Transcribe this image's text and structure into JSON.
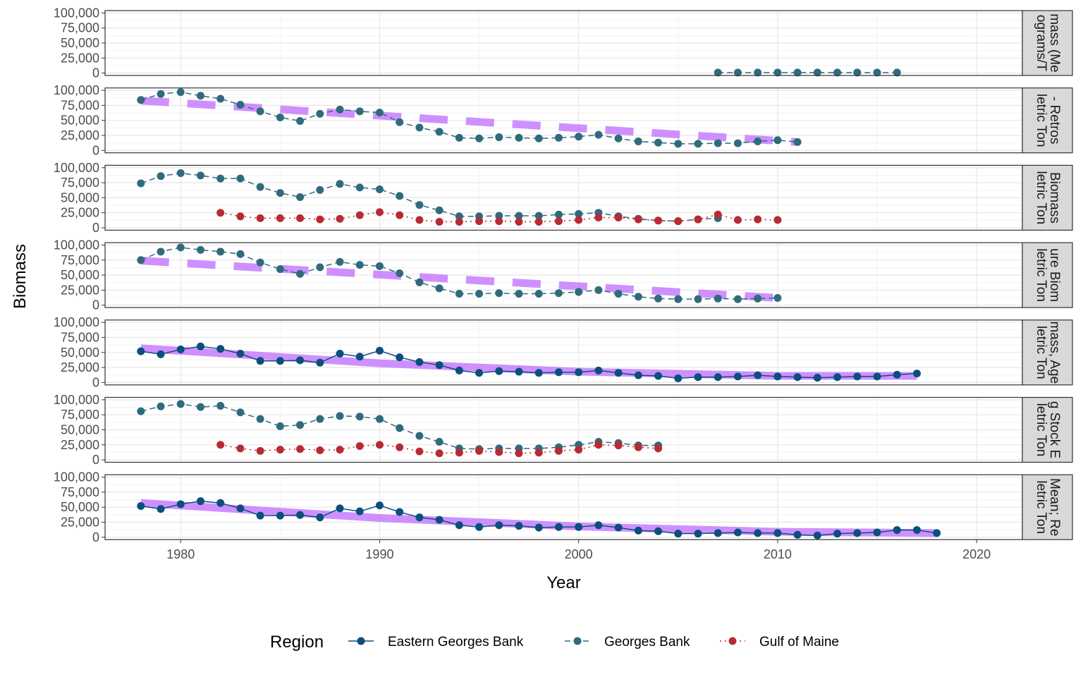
{
  "chart_data": {
    "type": "line",
    "facet_layout": "vertical",
    "shared_x_axis": true,
    "ylabel": "Biomass",
    "xlabel": "Year",
    "xlim": [
      1976.2,
      2022.3
    ],
    "ylim": [
      -4000,
      104000
    ],
    "x_ticks": [
      1980,
      1990,
      2000,
      2010,
      2020
    ],
    "x_tick_labels": [
      "1980",
      "1990",
      "2000",
      "2010",
      "2020"
    ],
    "y_ticks": [
      0,
      25000,
      50000,
      75000,
      100000
    ],
    "y_tick_labels": [
      "0",
      "25,000",
      "50,000",
      "75,000",
      "100,000"
    ],
    "grid": true,
    "legend": {
      "title": "Region",
      "position": "bottom",
      "entries": [
        {
          "label": "Eastern Georges Bank",
          "color": "#0b4f7c",
          "linetype": "solid"
        },
        {
          "label": "Georges Bank",
          "color": "#2f6b7c",
          "linetype": "dashed"
        },
        {
          "label": "Gulf of Maine",
          "color": "#b82a34",
          "linetype": "dotted"
        }
      ]
    },
    "trend_color": "#c77cff",
    "facets": [
      {
        "strip_lines": [
          "mass (Me",
          "ograms/T"
        ],
        "series": [
          {
            "region": "Georges Bank",
            "x": [
              2007,
              2008,
              2009,
              2010,
              2011,
              2012,
              2013,
              2014,
              2015,
              2016
            ],
            "values": [
              800,
              800,
              800,
              800,
              800,
              800,
              800,
              800,
              800,
              800
            ]
          }
        ],
        "trend": null
      },
      {
        "strip_lines": [
          "- Retros",
          "letric Ton"
        ],
        "series": [
          {
            "region": "Georges Bank",
            "x": [
              1978,
              1979,
              1980,
              1981,
              1982,
              1983,
              1984,
              1985,
              1986,
              1987,
              1988,
              1989,
              1990,
              1991,
              1992,
              1993,
              1994,
              1995,
              1996,
              1997,
              1998,
              1999,
              2000,
              2001,
              2002,
              2003,
              2004,
              2005,
              2006,
              2007,
              2008,
              2009,
              2010,
              2011
            ],
            "values": [
              84000,
              94000,
              97000,
              91000,
              86000,
              76000,
              65000,
              55000,
              49000,
              61000,
              68000,
              65000,
              63000,
              47000,
              38000,
              31000,
              21000,
              20000,
              22000,
              21000,
              20000,
              21000,
              23000,
              26000,
              20000,
              15000,
              13000,
              11000,
              11000,
              12000,
              12000,
              15000,
              17000,
              14000
            ]
          }
        ],
        "trend": {
          "style": "dashed",
          "x": [
            1978,
            2011
          ],
          "values": [
            83000,
            14000
          ]
        }
      },
      {
        "strip_lines": [
          "Biomass",
          "letric Ton"
        ],
        "series": [
          {
            "region": "Georges Bank",
            "x": [
              1978,
              1979,
              1980,
              1981,
              1982,
              1983,
              1984,
              1985,
              1986,
              1987,
              1988,
              1989,
              1990,
              1991,
              1992,
              1993,
              1994,
              1995,
              1996,
              1997,
              1998,
              1999,
              2000,
              2001,
              2002,
              2003,
              2004,
              2005,
              2006,
              2007
            ],
            "values": [
              74000,
              86000,
              91000,
              87000,
              82000,
              82000,
              68000,
              58000,
              51000,
              63000,
              73000,
              67000,
              64000,
              53000,
              38000,
              29000,
              19000,
              19000,
              20000,
              20000,
              20000,
              22000,
              23000,
              25000,
              19000,
              15000,
              12000,
              11000,
              14000,
              16000
            ]
          },
          {
            "region": "Gulf of Maine",
            "x": [
              1982,
              1983,
              1984,
              1985,
              1986,
              1987,
              1988,
              1989,
              1990,
              1991,
              1992,
              1993,
              1994,
              1995,
              1996,
              1997,
              1998,
              1999,
              2000,
              2001,
              2002,
              2003,
              2004,
              2005,
              2006,
              2007,
              2008,
              2009,
              2010
            ],
            "values": [
              25000,
              19000,
              16000,
              16000,
              16000,
              14000,
              15000,
              21000,
              26000,
              21000,
              13000,
              10000,
              10000,
              11000,
              11000,
              10000,
              10000,
              11000,
              13000,
              17000,
              17000,
              14000,
              12000,
              11000,
              14000,
              22000,
              13000,
              14000,
              13000
            ]
          }
        ],
        "trend": null
      },
      {
        "strip_lines": [
          "ure Biom",
          "letric Ton"
        ],
        "series": [
          {
            "region": "Georges Bank",
            "x": [
              1978,
              1979,
              1980,
              1981,
              1982,
              1983,
              1984,
              1985,
              1986,
              1987,
              1988,
              1989,
              1990,
              1991,
              1992,
              1993,
              1994,
              1995,
              1996,
              1997,
              1998,
              1999,
              2000,
              2001,
              2002,
              2003,
              2004,
              2005,
              2006,
              2007,
              2008,
              2009,
              2010
            ],
            "values": [
              75000,
              89000,
              96000,
              92000,
              89000,
              85000,
              71000,
              60000,
              52000,
              63000,
              72000,
              67000,
              65000,
              53000,
              38000,
              28000,
              19000,
              19000,
              20000,
              19000,
              19000,
              20000,
              22000,
              25000,
              19000,
              14000,
              11000,
              10000,
              10000,
              11000,
              10000,
              11000,
              12000
            ]
          }
        ],
        "trend": {
          "style": "dashed",
          "x": [
            1978,
            2010
          ],
          "values": [
            74000,
            12000
          ]
        }
      },
      {
        "strip_lines": [
          "mass, Age",
          "letric Ton"
        ],
        "series": [
          {
            "region": "Eastern Georges Bank",
            "x": [
              1978,
              1979,
              1980,
              1981,
              1982,
              1983,
              1984,
              1985,
              1986,
              1987,
              1988,
              1989,
              1990,
              1991,
              1992,
              1993,
              1994,
              1995,
              1996,
              1997,
              1998,
              1999,
              2000,
              2001,
              2002,
              2003,
              2004,
              2005,
              2006,
              2007,
              2008,
              2009,
              2010,
              2011,
              2012,
              2013,
              2014,
              2015,
              2016,
              2017
            ],
            "values": [
              52000,
              47000,
              55000,
              60000,
              56000,
              48000,
              36000,
              36000,
              37000,
              33000,
              48000,
              43000,
              53000,
              42000,
              34000,
              29000,
              20000,
              16000,
              19000,
              18000,
              16000,
              17000,
              17000,
              20000,
              16000,
              12000,
              11000,
              7000,
              9000,
              9000,
              10000,
              12000,
              10000,
              9000,
              8000,
              9000,
              10000,
              10000,
              13000,
              15000
            ]
          }
        ],
        "trend": {
          "style": "solid",
          "x": [
            1978,
            1990,
            2000,
            2010,
            2017
          ],
          "values": [
            57000,
            32000,
            18000,
            11000,
            11000
          ]
        }
      },
      {
        "strip_lines": [
          "g Stock E",
          "letric Ton"
        ],
        "series": [
          {
            "region": "Georges Bank",
            "x": [
              1978,
              1979,
              1980,
              1981,
              1982,
              1983,
              1984,
              1985,
              1986,
              1987,
              1988,
              1989,
              1990,
              1991,
              1992,
              1993,
              1994,
              1995,
              1996,
              1997,
              1998,
              1999,
              2000,
              2001,
              2002,
              2003,
              2004
            ],
            "values": [
              81000,
              89000,
              93000,
              88000,
              90000,
              79000,
              68000,
              56000,
              58000,
              68000,
              73000,
              72000,
              68000,
              53000,
              40000,
              30000,
              19000,
              18000,
              19000,
              19000,
              19000,
              21000,
              25000,
              30000,
              28000,
              24000,
              24000
            ]
          },
          {
            "region": "Gulf of Maine",
            "x": [
              1982,
              1983,
              1984,
              1985,
              1986,
              1987,
              1988,
              1989,
              1990,
              1991,
              1992,
              1993,
              1994,
              1995,
              1996,
              1997,
              1998,
              1999,
              2000,
              2001,
              2002,
              2003,
              2004
            ],
            "values": [
              25000,
              19000,
              15000,
              17000,
              18000,
              16000,
              17000,
              23000,
              25000,
              21000,
              14000,
              11000,
              12000,
              15000,
              13000,
              11000,
              12000,
              15000,
              17000,
              25000,
              24000,
              21000,
              19000
            ]
          }
        ],
        "trend": null
      },
      {
        "strip_lines": [
          "Mean; Re",
          "letric Ton"
        ],
        "series": [
          {
            "region": "Eastern Georges Bank",
            "x": [
              1978,
              1979,
              1980,
              1981,
              1982,
              1983,
              1984,
              1985,
              1986,
              1987,
              1988,
              1989,
              1990,
              1991,
              1992,
              1993,
              1994,
              1995,
              1996,
              1997,
              1998,
              1999,
              2000,
              2001,
              2002,
              2003,
              2004,
              2005,
              2006,
              2007,
              2008,
              2009,
              2010,
              2011,
              2012,
              2013,
              2014,
              2015,
              2016,
              2017,
              2018
            ],
            "values": [
              52000,
              47000,
              55000,
              60000,
              57000,
              48000,
              36000,
              36000,
              37000,
              33000,
              48000,
              43000,
              53000,
              42000,
              33000,
              29000,
              20000,
              17000,
              20000,
              19000,
              16000,
              17000,
              17000,
              20000,
              16000,
              11000,
              10000,
              6000,
              6000,
              7000,
              8000,
              7000,
              7000,
              4000,
              3000,
              6000,
              7000,
              8000,
              12000,
              12000,
              7000
            ]
          }
        ],
        "trend": {
          "style": "solid",
          "x": [
            1978,
            1990,
            2000,
            2010,
            2018
          ],
          "values": [
            57000,
            32000,
            18000,
            9000,
            7000
          ]
        }
      }
    ]
  }
}
